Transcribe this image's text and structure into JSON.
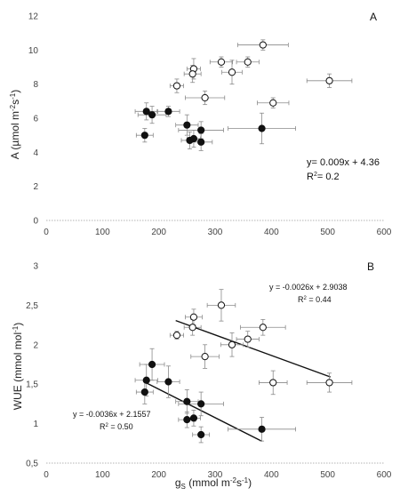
{
  "chart_data": [
    {
      "type": "scatter",
      "panel_label": "A",
      "ylabel_main": "A (",
      "ylabel_unit": "µmol m",
      "ylabel_exp1": "-2",
      "ylabel_s": "s",
      "ylabel_exp2": "-1",
      "ylabel_close": ")",
      "xlim": [
        0,
        600
      ],
      "ylim": [
        0,
        12
      ],
      "x_ticks": [
        "0",
        "100",
        "200",
        "300",
        "400",
        "500",
        "600"
      ],
      "y_ticks": [
        "0",
        "2",
        "4",
        "6",
        "8",
        "10",
        "12"
      ],
      "open_points": [
        {
          "x": 385,
          "y": 10.3,
          "xerr": 45,
          "yerr": 0.3
        },
        {
          "x": 311,
          "y": 9.3,
          "xerr": 20,
          "yerr": 0.3
        },
        {
          "x": 358,
          "y": 9.3,
          "xerr": 20,
          "yerr": 0.3
        },
        {
          "x": 262,
          "y": 8.9,
          "xerr": 12,
          "yerr": 0.6
        },
        {
          "x": 260,
          "y": 8.6,
          "xerr": 15,
          "yerr": 0.5
        },
        {
          "x": 330,
          "y": 8.7,
          "xerr": 18,
          "yerr": 0.7
        },
        {
          "x": 232,
          "y": 7.9,
          "xerr": 12,
          "yerr": 0.4
        },
        {
          "x": 503,
          "y": 8.2,
          "xerr": 40,
          "yerr": 0.4
        },
        {
          "x": 282,
          "y": 7.2,
          "xerr": 35,
          "yerr": 0.4
        },
        {
          "x": 403,
          "y": 6.9,
          "xerr": 28,
          "yerr": 0.3
        }
      ],
      "filled_points": [
        {
          "x": 178,
          "y": 6.4,
          "xerr": 20,
          "yerr": 0.5
        },
        {
          "x": 188,
          "y": 6.2,
          "xerr": 25,
          "yerr": 0.5
        },
        {
          "x": 217,
          "y": 6.4,
          "xerr": 20,
          "yerr": 0.3
        },
        {
          "x": 250,
          "y": 5.6,
          "xerr": 20,
          "yerr": 0.6
        },
        {
          "x": 275,
          "y": 5.3,
          "xerr": 40,
          "yerr": 0.5
        },
        {
          "x": 383,
          "y": 5.4,
          "xerr": 60,
          "yerr": 0.9
        },
        {
          "x": 175,
          "y": 5.0,
          "xerr": 15,
          "yerr": 0.4
        },
        {
          "x": 255,
          "y": 4.7,
          "xerr": 15,
          "yerr": 0.5
        },
        {
          "x": 262,
          "y": 4.8,
          "xerr": 12,
          "yerr": 0.5
        },
        {
          "x": 275,
          "y": 4.6,
          "xerr": 20,
          "yerr": 0.5
        }
      ],
      "equation": "y= 0.009x + 4.36",
      "r2_prefix": "R",
      "r2_exp": "2",
      "r2_suffix": "= 0.2"
    },
    {
      "type": "scatter",
      "panel_label": "B",
      "ylabel_full": "WUE (mmol mol",
      "ylabel_exp": "-1",
      "ylabel_close": ")",
      "xlabel_main": "g",
      "xlabel_sub": "S",
      "xlabel_unit": "(mmol m",
      "xlabel_exp1": "-2",
      "xlabel_s": "s",
      "xlabel_exp2": "-1",
      "xlabel_close": ")",
      "xlim": [
        0,
        600
      ],
      "ylim": [
        0.5,
        3
      ],
      "x_ticks": [
        "0",
        "100",
        "200",
        "300",
        "400",
        "500",
        "600"
      ],
      "y_ticks": [
        "0,5",
        "1",
        "1,5",
        "2",
        "2,5",
        "3"
      ],
      "open_points": [
        {
          "x": 311,
          "y": 2.5,
          "xerr": 25,
          "yerr": 0.2
        },
        {
          "x": 262,
          "y": 2.35,
          "xerr": 15,
          "yerr": 0.1
        },
        {
          "x": 260,
          "y": 2.22,
          "xerr": 15,
          "yerr": 0.1
        },
        {
          "x": 232,
          "y": 2.12,
          "xerr": 12,
          "yerr": 0.05
        },
        {
          "x": 385,
          "y": 2.22,
          "xerr": 40,
          "yerr": 0.1
        },
        {
          "x": 358,
          "y": 2.07,
          "xerr": 20,
          "yerr": 0.1
        },
        {
          "x": 330,
          "y": 2.0,
          "xerr": 20,
          "yerr": 0.15
        },
        {
          "x": 282,
          "y": 1.85,
          "xerr": 25,
          "yerr": 0.15
        },
        {
          "x": 403,
          "y": 1.52,
          "xerr": 25,
          "yerr": 0.15
        },
        {
          "x": 503,
          "y": 1.52,
          "xerr": 40,
          "yerr": 0.12
        }
      ],
      "filled_points": [
        {
          "x": 188,
          "y": 1.75,
          "xerr": 22,
          "yerr": 0.2
        },
        {
          "x": 178,
          "y": 1.55,
          "xerr": 20,
          "yerr": 0.2
        },
        {
          "x": 217,
          "y": 1.53,
          "xerr": 20,
          "yerr": 0.2
        },
        {
          "x": 175,
          "y": 1.4,
          "xerr": 15,
          "yerr": 0.15
        },
        {
          "x": 250,
          "y": 1.28,
          "xerr": 20,
          "yerr": 0.15
        },
        {
          "x": 275,
          "y": 1.25,
          "xerr": 40,
          "yerr": 0.15
        },
        {
          "x": 250,
          "y": 1.05,
          "xerr": 15,
          "yerr": 0.1
        },
        {
          "x": 262,
          "y": 1.07,
          "xerr": 12,
          "yerr": 0.1
        },
        {
          "x": 275,
          "y": 0.86,
          "xerr": 15,
          "yerr": 0.1
        },
        {
          "x": 383,
          "y": 0.93,
          "xerr": 60,
          "yerr": 0.15
        }
      ],
      "trend_open": {
        "slope": -0.0026,
        "intercept": 2.9038,
        "x0": 230,
        "x1": 505
      },
      "trend_filled": {
        "slope": -0.0036,
        "intercept": 2.1557,
        "x0": 175,
        "x1": 383
      },
      "eq_open": "y = -0.0026x + 2.9038",
      "r2_open_prefix": "R",
      "r2_open_exp": "2",
      "r2_open_suffix": " = 0.44",
      "eq_filled": "y = -0.0036x + 2.1557",
      "r2_filled_prefix": "R",
      "r2_filled_exp": "2",
      "r2_filled_suffix": " = 0.50"
    }
  ]
}
